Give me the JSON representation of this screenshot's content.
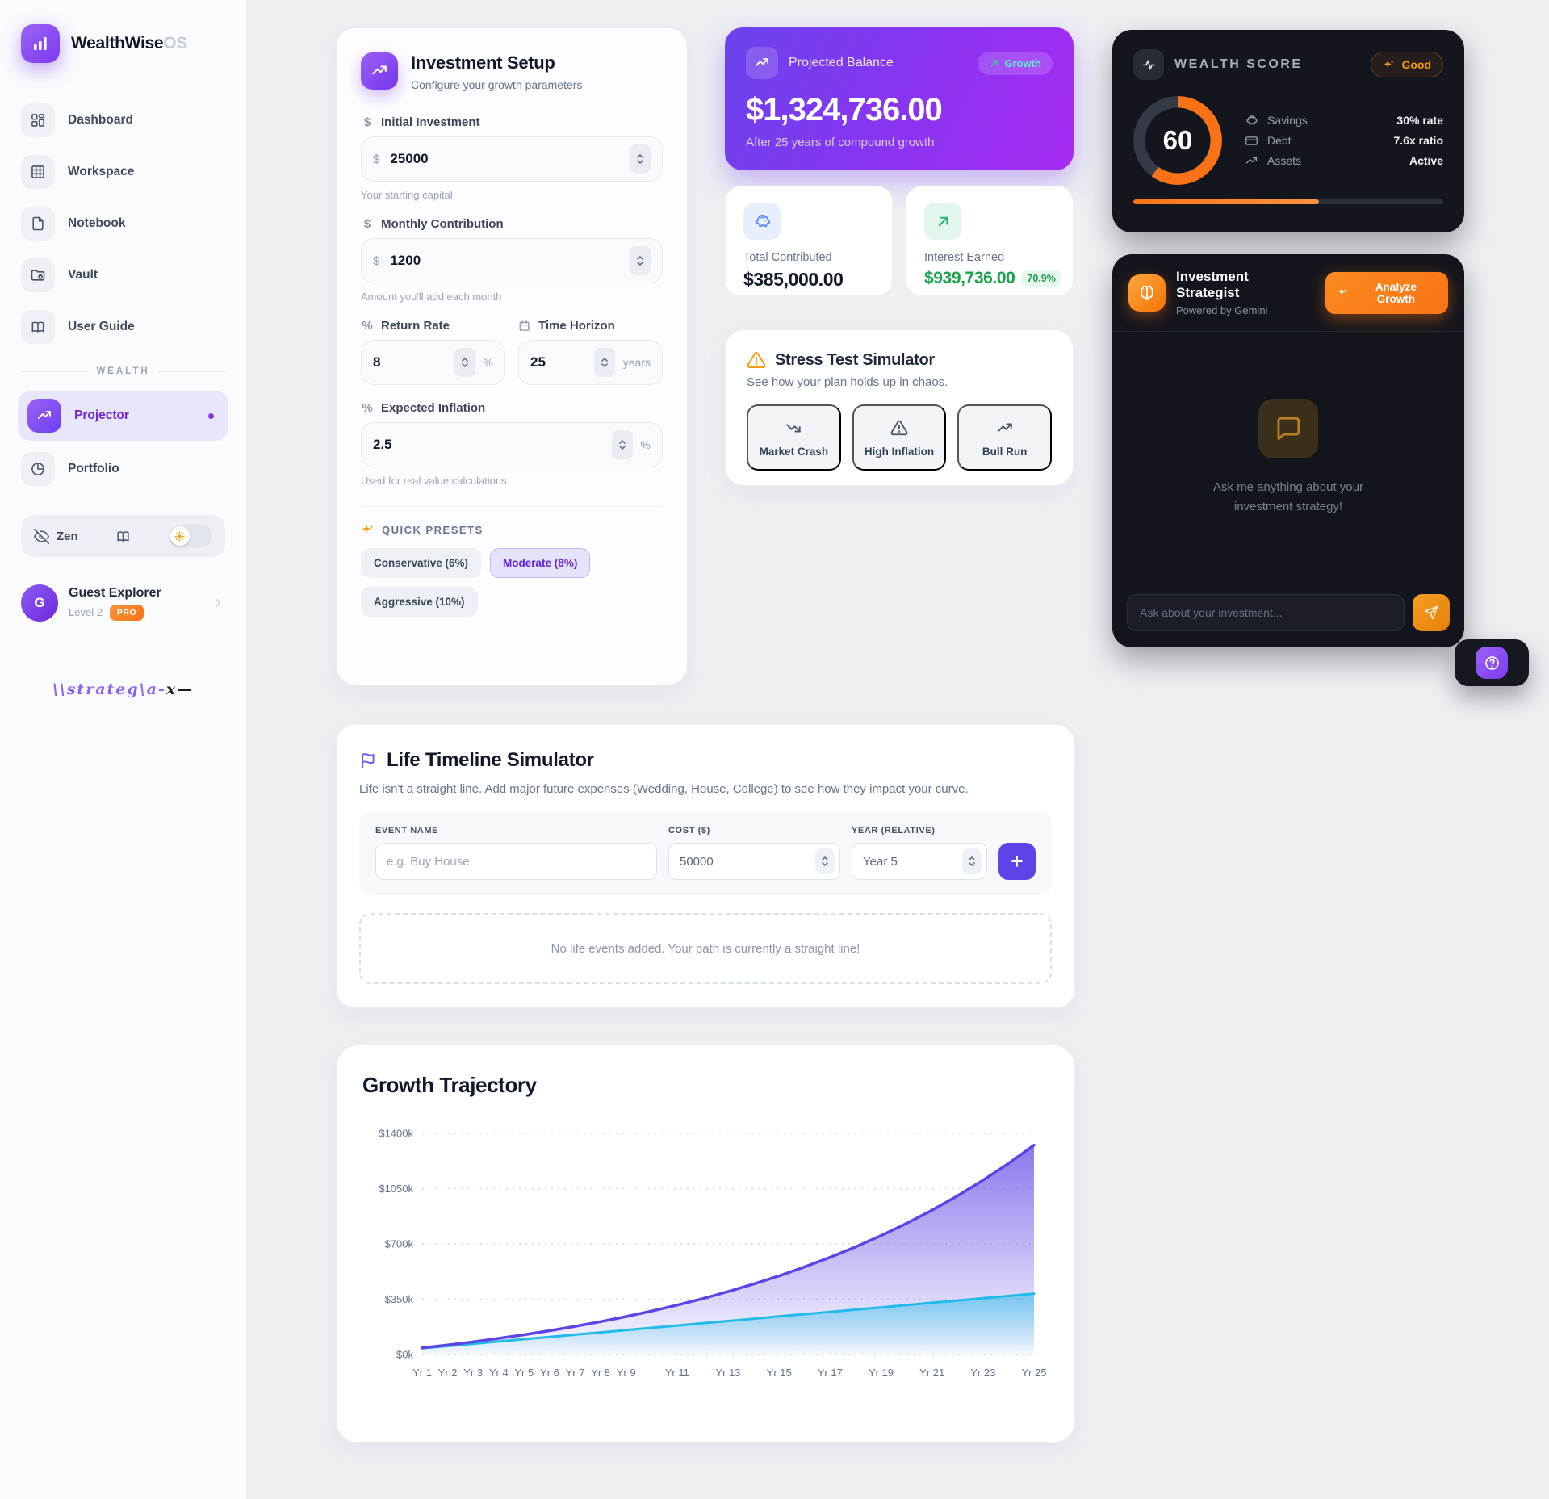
{
  "app": {
    "name": "WealthWise",
    "suffix": "OS"
  },
  "sidebar": {
    "items": [
      {
        "label": "Dashboard",
        "icon": "dashboard-icon"
      },
      {
        "label": "Workspace",
        "icon": "workspace-grid-icon"
      },
      {
        "label": "Notebook",
        "icon": "notebook-icon"
      },
      {
        "label": "Vault",
        "icon": "vault-folder-lock-icon"
      },
      {
        "label": "User Guide",
        "icon": "user-guide-book-icon"
      }
    ],
    "section_label": "WEALTH",
    "wealth_items": [
      {
        "label": "Projector",
        "active": true
      },
      {
        "label": "Portfolio",
        "active": false
      }
    ],
    "zen_label": "Zen",
    "profile": {
      "avatar_initial": "G",
      "name": "Guest Explorer",
      "level": "Level 2",
      "badge": "PRO"
    },
    "watermark": {
      "script": "\\\\strateg\\a-",
      "tail": "x—"
    }
  },
  "investment_setup": {
    "title": "Investment Setup",
    "subtitle": "Configure your growth parameters",
    "fields": {
      "initial": {
        "label": "Initial Investment",
        "symbol": "$",
        "prefix": "$",
        "value": "25000",
        "helper": "Your starting capital"
      },
      "monthly": {
        "label": "Monthly Contribution",
        "symbol": "$",
        "prefix": "$",
        "value": "1200",
        "helper": "Amount you'll add each month"
      },
      "return_rate": {
        "label": "Return Rate",
        "symbol": "%",
        "value": "8",
        "suffix": "%"
      },
      "horizon": {
        "label": "Time Horizon",
        "value": "25",
        "suffix": "years"
      },
      "inflation": {
        "label": "Expected Inflation",
        "symbol": "%",
        "value": "2.5",
        "suffix": "%",
        "helper": "Used for real value calculations"
      }
    },
    "presets": {
      "label": "QUICK PRESETS",
      "options": [
        {
          "label": "Conservative (6%)",
          "active": false
        },
        {
          "label": "Moderate (8%)",
          "active": true
        },
        {
          "label": "Aggressive (10%)",
          "active": false
        }
      ]
    }
  },
  "projected": {
    "label": "Projected Balance",
    "badge": "Growth",
    "amount": "$1,324,736.00",
    "caption": "After 25 years of compound growth"
  },
  "stats": {
    "contributed": {
      "label": "Total Contributed",
      "value": "$385,000.00"
    },
    "interest": {
      "label": "Interest Earned",
      "value": "$939,736.00",
      "pct": "70.9%"
    }
  },
  "stress": {
    "title": "Stress Test Simulator",
    "subtitle": "See how your plan holds up in chaos.",
    "buttons": [
      {
        "label": "Market Crash",
        "icon": "trending-down-icon"
      },
      {
        "label": "High Inflation",
        "icon": "warning-triangle-icon"
      },
      {
        "label": "Bull Run",
        "icon": "trending-up-icon"
      }
    ]
  },
  "wealth_score": {
    "title": "WEALTH SCORE",
    "badge": "Good",
    "score": "60",
    "progress_pct": 60,
    "rows": [
      {
        "label": "Savings",
        "value": "30% rate",
        "icon": "piggy-bank-icon"
      },
      {
        "label": "Debt",
        "value": "7.6x ratio",
        "icon": "credit-card-icon"
      },
      {
        "label": "Assets",
        "value": "Active",
        "icon": "trending-up-icon"
      }
    ],
    "accent_color": "#f97316"
  },
  "strategist": {
    "title": "Investment Strategist",
    "subtitle": "Powered by Gemini",
    "button": "Analyze Growth",
    "empty_message": "Ask me anything about your investment strategy!",
    "input_placeholder": "Ask about your investment..."
  },
  "life": {
    "title": "Life Timeline Simulator",
    "description": "Life isn't a straight line. Add major future expenses (Wedding, House, College) to see how they impact your curve.",
    "form": {
      "event_label": "EVENT NAME",
      "event_placeholder": "e.g. Buy House",
      "cost_label": "COST ($)",
      "cost_value": "50000",
      "year_label": "YEAR (RELATIVE)",
      "year_value": "Year 5"
    },
    "empty_state": "No life events added. Your path is currently a straight line!"
  },
  "chart_data": {
    "type": "area",
    "title": "Growth Trajectory",
    "x_unit": "year",
    "years": 25,
    "series": [
      {
        "name": "Projected Balance",
        "color": "#5b45e6",
        "values": [
          42015,
          60442,
          80399,
          102012,
          125419,
          150768,
          178221,
          207954,
          240154,
          275026,
          312793,
          353695,
          397993,
          445965,
          497919,
          554187,
          615123,
          681119,
          752590,
          829994,
          913823,
          1004607,
          1102925,
          1209402,
          1324737
        ]
      },
      {
        "name": "Total Contributed",
        "color": "#22bbe8",
        "values": [
          39400,
          53800,
          68200,
          82600,
          97000,
          111400,
          125800,
          140200,
          154600,
          169000,
          183400,
          197800,
          212200,
          226600,
          241000,
          255400,
          269800,
          284200,
          298600,
          313000,
          327400,
          341800,
          356200,
          370600,
          385000
        ]
      }
    ],
    "ylim": [
      0,
      1400000
    ],
    "ytick_labels": [
      "$0k",
      "$350k",
      "$700k",
      "$1050k",
      "$1400k"
    ],
    "xtick_labels": [
      "Yr 1",
      "Yr 2",
      "Yr 3",
      "Yr 4",
      "Yr 5",
      "Yr 6",
      "Yr 7",
      "Yr 8",
      "Yr 9",
      "Yr 11",
      "Yr 13",
      "Yr 15",
      "Yr 17",
      "Yr 19",
      "Yr 21",
      "Yr 23",
      "Yr 25"
    ],
    "grid": "dotted-horizontal",
    "legend": "none"
  }
}
